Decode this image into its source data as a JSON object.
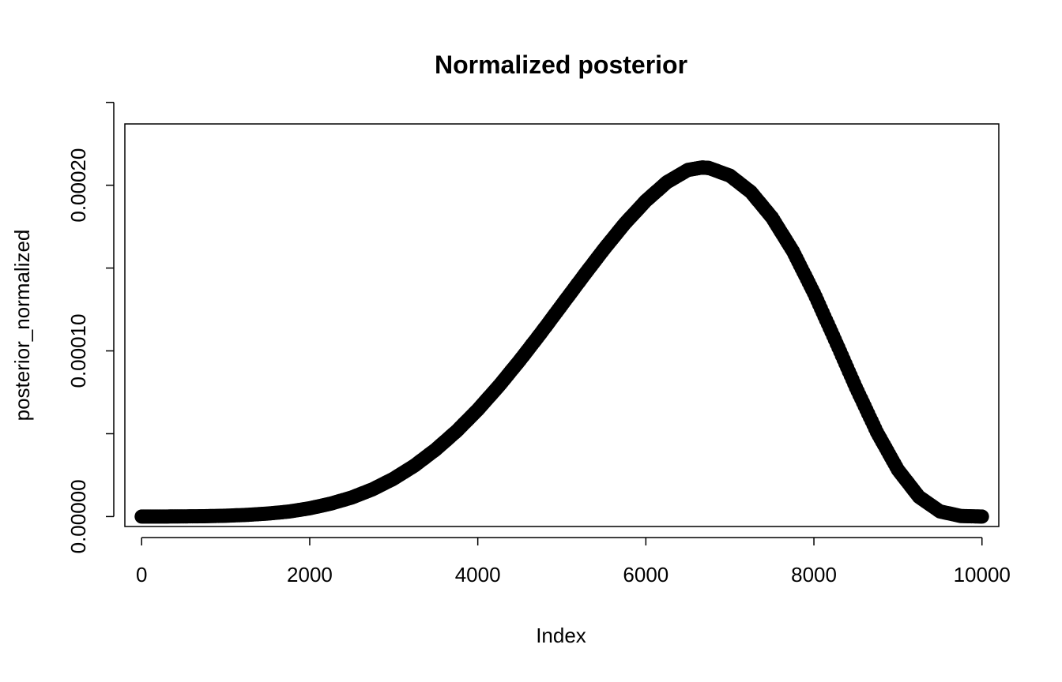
{
  "chart_data": {
    "type": "scatter",
    "title": "Normalized posterior",
    "xlabel": "Index",
    "ylabel": "posterior_normalized",
    "xlim": [
      -200,
      10200
    ],
    "ylim": [
      -6e-06,
      0.000237
    ],
    "x_ticks": [
      0,
      2000,
      4000,
      6000,
      8000,
      10000
    ],
    "x_tick_labels": [
      "0",
      "2000",
      "4000",
      "6000",
      "8000",
      "10000"
    ],
    "y_ticks": [
      0,
      5e-05,
      0.0001,
      0.00015,
      0.0002,
      0.00025
    ],
    "y_tick_labels": [
      "0.00000",
      "",
      "0.00010",
      "",
      "0.00020",
      ""
    ],
    "grid": false,
    "legend": "none",
    "series": [
      {
        "point_color": "#000000",
        "x": [
          0,
          250,
          500,
          750,
          1000,
          1250,
          1500,
          1750,
          2000,
          2250,
          2500,
          2750,
          3000,
          3250,
          3500,
          3750,
          4000,
          4250,
          4500,
          4750,
          5000,
          5250,
          5500,
          5750,
          6000,
          6250,
          6500,
          6667,
          6750,
          7000,
          7250,
          7500,
          7750,
          8000,
          8250,
          8500,
          8750,
          9000,
          9250,
          9500,
          9750,
          10000
        ],
        "y": [
          0,
          0,
          1e-07,
          2e-07,
          5e-07,
          1e-06,
          1.8e-06,
          3e-06,
          5e-06,
          7.8e-06,
          1.15e-05,
          1.65e-05,
          2.29e-05,
          3.09e-05,
          4.05e-05,
          5.17e-05,
          6.45e-05,
          7.88e-05,
          9.43e-05,
          0.0001107,
          0.0001277,
          0.0001447,
          0.0001613,
          0.0001769,
          0.0001906,
          0.0002018,
          0.0002092,
          0.0002107,
          0.0002104,
          0.0002058,
          0.0001959,
          0.0001806,
          0.0001602,
          0.000135,
          0.0001068,
          7.79e-05,
          5.09e-05,
          2.82e-05,
          1.19e-05,
          3.1e-06,
          3e-07,
          0
        ]
      }
    ]
  }
}
